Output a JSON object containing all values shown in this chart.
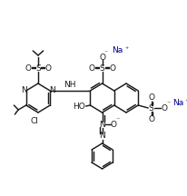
{
  "bg": "#ffffff",
  "lc": "#1a1a1a",
  "nc": "#00008B",
  "lw": 1.05,
  "fs": 6.2,
  "figw": 2.06,
  "figh": 2.16,
  "dpi": 100,
  "xlim": [
    0,
    206
  ],
  "ylim": [
    0,
    216
  ]
}
